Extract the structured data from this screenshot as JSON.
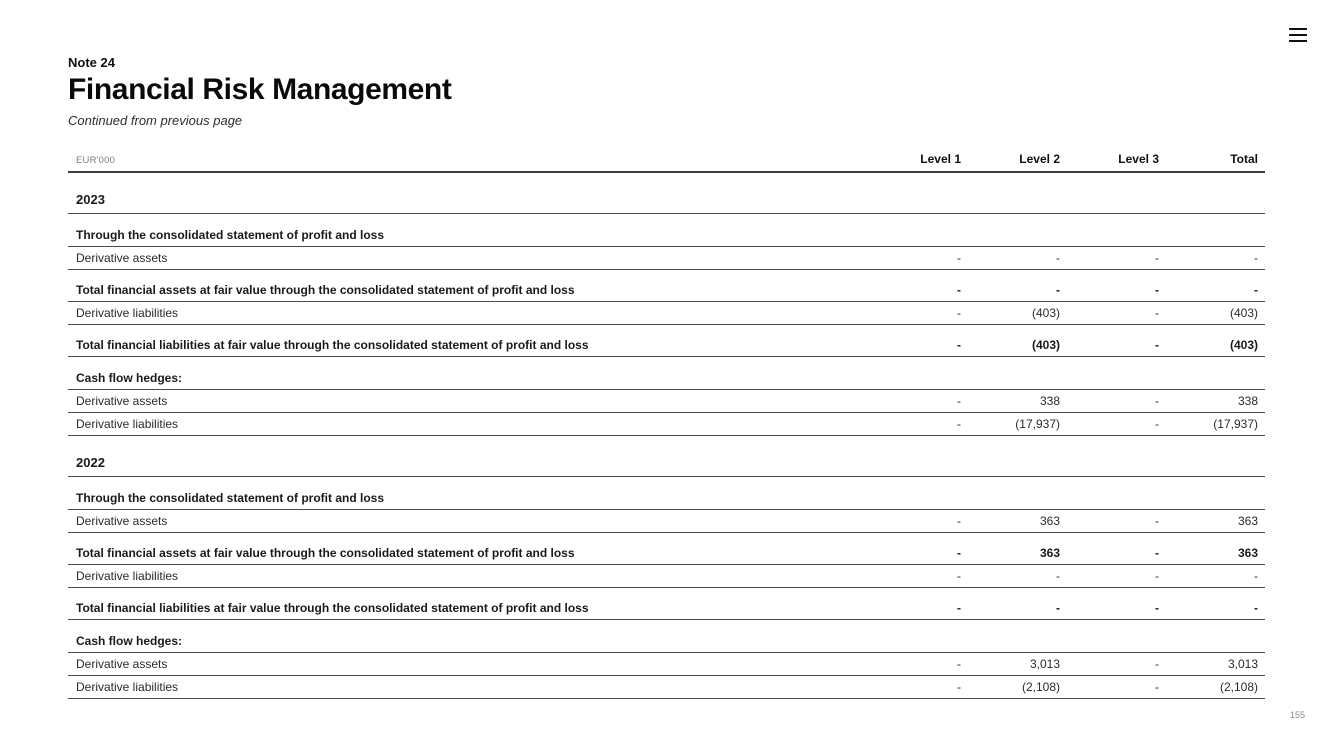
{
  "menu": {
    "icon": "hamburger-menu-icon"
  },
  "header": {
    "note": "Note 24",
    "title": "Financial Risk Management",
    "subtitle": "Continued from previous page"
  },
  "table": {
    "unit": "EUR'000",
    "columns": [
      "Level 1",
      "Level 2",
      "Level 3",
      "Total"
    ],
    "rows": [
      {
        "type": "year",
        "label": "2023",
        "values": [
          "",
          "",
          "",
          ""
        ]
      },
      {
        "type": "section",
        "label": "Through the consolidated statement of profit and loss",
        "values": [
          "",
          "",
          "",
          ""
        ]
      },
      {
        "type": "data",
        "label": "Derivative assets",
        "values": [
          "-",
          "-",
          "-",
          "-"
        ]
      },
      {
        "type": "total",
        "label": "Total financial assets at fair value through the consolidated statement of profit and loss",
        "values": [
          "-",
          "-",
          "-",
          "-"
        ]
      },
      {
        "type": "data",
        "label": "Derivative liabilities",
        "values": [
          "-",
          "(403)",
          "-",
          "(403)"
        ]
      },
      {
        "type": "total",
        "label": "Total financial liabilities at fair value through the consolidated statement of profit and loss",
        "values": [
          "-",
          "(403)",
          "-",
          "(403)"
        ]
      },
      {
        "type": "section",
        "label": "Cash flow hedges:",
        "values": [
          "",
          "",
          "",
          ""
        ]
      },
      {
        "type": "data",
        "label": "Derivative assets",
        "values": [
          "-",
          "338",
          "-",
          "338"
        ]
      },
      {
        "type": "data",
        "label": "Derivative liabilities",
        "values": [
          "-",
          "(17,937)",
          "-",
          "(17,937)"
        ]
      },
      {
        "type": "year",
        "label": "2022",
        "values": [
          "",
          "",
          "",
          ""
        ]
      },
      {
        "type": "section",
        "label": "Through the consolidated statement of profit and loss",
        "values": [
          "",
          "",
          "",
          ""
        ]
      },
      {
        "type": "data",
        "label": "Derivative assets",
        "values": [
          "-",
          "363",
          "-",
          "363"
        ]
      },
      {
        "type": "total",
        "label": "Total financial assets at fair value through the consolidated statement of profit and loss",
        "values": [
          "-",
          "363",
          "-",
          "363"
        ]
      },
      {
        "type": "data",
        "label": "Derivative liabilities",
        "values": [
          "-",
          "-",
          "-",
          "-"
        ]
      },
      {
        "type": "total",
        "label": "Total financial liabilities at fair value through the consolidated statement of profit and loss",
        "values": [
          "-",
          "-",
          "-",
          "-"
        ]
      },
      {
        "type": "section",
        "label": "Cash flow hedges:",
        "values": [
          "",
          "",
          "",
          ""
        ]
      },
      {
        "type": "data",
        "label": "Derivative assets",
        "values": [
          "-",
          "3,013",
          "-",
          "3,013"
        ]
      },
      {
        "type": "data",
        "label": "Derivative liabilities",
        "values": [
          "-",
          "(2,108)",
          "-",
          "(2,108)"
        ]
      }
    ]
  },
  "footer": {
    "page_number": "155"
  },
  "colors": {
    "text": "#1a1a1a",
    "muted": "#7d7d7d",
    "rule_thick": "#3d3d3d",
    "rule_thin": "#4a4a4a"
  }
}
